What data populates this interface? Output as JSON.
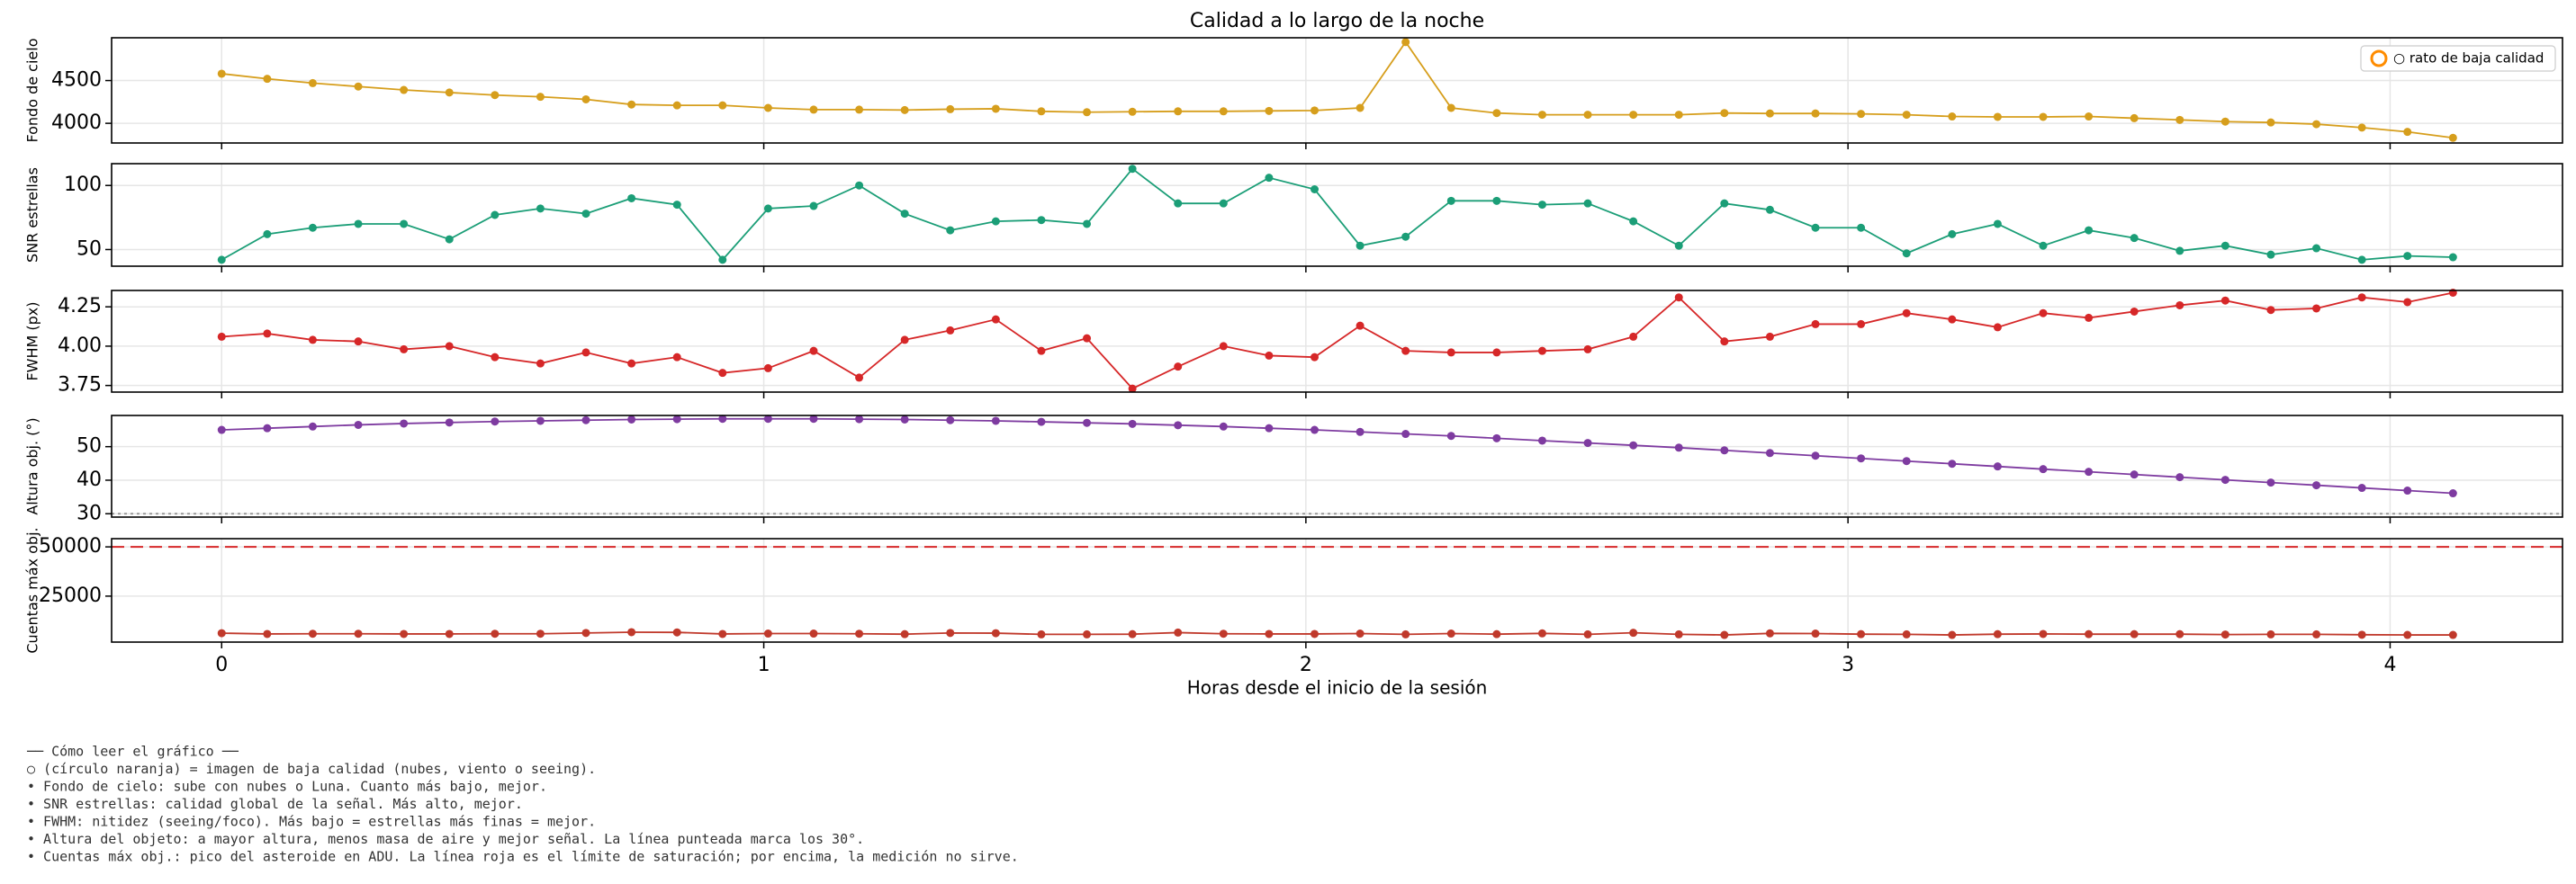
{
  "chart_data": [
    {
      "type": "line",
      "title": "Calidad a lo largo de la noche",
      "ylabel": "Fondo de cielo",
      "x": [
        0,
        0.084,
        0.168,
        0.252,
        0.336,
        0.42,
        0.504,
        0.588,
        0.672,
        0.756,
        0.84,
        0.924,
        1.008,
        1.092,
        1.176,
        1.26,
        1.344,
        1.428,
        1.512,
        1.596,
        1.68,
        1.764,
        1.848,
        1.932,
        2.016,
        2.1,
        2.184,
        2.268,
        2.352,
        2.436,
        2.52,
        2.604,
        2.688,
        2.772,
        2.856,
        2.94,
        3.024,
        3.108,
        3.192,
        3.276,
        3.36,
        3.444,
        3.528,
        3.612,
        3.696,
        3.78,
        3.864,
        3.948,
        4.032,
        4.116
      ],
      "series": [
        {
          "color": "#d69e1c",
          "values": [
            4580,
            4520,
            4470,
            4430,
            4390,
            4360,
            4330,
            4310,
            4280,
            4220,
            4210,
            4210,
            4180,
            4160,
            4160,
            4155,
            4165,
            4170,
            4140,
            4130,
            4135,
            4140,
            4140,
            4145,
            4150,
            4180,
            4950,
            4180,
            4120,
            4100,
            4100,
            4100,
            4100,
            4120,
            4115,
            4115,
            4110,
            4100,
            4080,
            4075,
            4075,
            4080,
            4060,
            4040,
            4020,
            4010,
            3990,
            3950,
            3900,
            3830
          ]
        }
      ],
      "xlim": [
        -0.203,
        4.318
      ],
      "xticks": [
        0,
        1,
        2,
        3,
        4
      ],
      "ylim": [
        3770,
        5000
      ],
      "yticks": [
        4000,
        4500
      ],
      "grid": true,
      "legend": [
        {
          "name": "○ rato de baja calidad",
          "color": "#ff8c00"
        }
      ],
      "legend_loc": "upper right"
    },
    {
      "type": "line",
      "ylabel": "SNR estrellas",
      "x": [
        0,
        0.084,
        0.168,
        0.252,
        0.336,
        0.42,
        0.504,
        0.588,
        0.672,
        0.756,
        0.84,
        0.924,
        1.008,
        1.092,
        1.176,
        1.26,
        1.344,
        1.428,
        1.512,
        1.596,
        1.68,
        1.764,
        1.848,
        1.932,
        2.016,
        2.1,
        2.184,
        2.268,
        2.352,
        2.436,
        2.52,
        2.604,
        2.688,
        2.772,
        2.856,
        2.94,
        3.024,
        3.108,
        3.192,
        3.276,
        3.36,
        3.444,
        3.528,
        3.612,
        3.696,
        3.78,
        3.864,
        3.948,
        4.032,
        4.116
      ],
      "series": [
        {
          "color": "#1b9e77",
          "values": [
            42,
            62,
            67,
            70,
            70,
            58,
            77,
            82,
            78,
            90,
            85,
            42,
            82,
            84,
            100,
            78,
            65,
            72,
            73,
            70,
            113,
            86,
            86,
            106,
            97,
            53,
            60,
            88,
            88,
            85,
            86,
            72,
            53,
            86,
            81,
            67,
            67,
            47,
            62,
            70,
            53,
            65,
            59,
            49,
            53,
            46,
            51,
            42,
            45,
            44
          ]
        }
      ],
      "xlim": [
        -0.203,
        4.318
      ],
      "xticks": [
        0,
        1,
        2,
        3,
        4
      ],
      "ylim": [
        37,
        117
      ],
      "yticks": [
        50,
        100
      ],
      "grid": true
    },
    {
      "type": "line",
      "ylabel": "FWHM (px)",
      "x": [
        0,
        0.084,
        0.168,
        0.252,
        0.336,
        0.42,
        0.504,
        0.588,
        0.672,
        0.756,
        0.84,
        0.924,
        1.008,
        1.092,
        1.176,
        1.26,
        1.344,
        1.428,
        1.512,
        1.596,
        1.68,
        1.764,
        1.848,
        1.932,
        2.016,
        2.1,
        2.184,
        2.268,
        2.352,
        2.436,
        2.52,
        2.604,
        2.688,
        2.772,
        2.856,
        2.94,
        3.024,
        3.108,
        3.192,
        3.276,
        3.36,
        3.444,
        3.528,
        3.612,
        3.696,
        3.78,
        3.864,
        3.948,
        4.032,
        4.116
      ],
      "series": [
        {
          "color": "#d62728",
          "values": [
            4.06,
            4.08,
            4.04,
            4.03,
            3.98,
            4.0,
            3.93,
            3.89,
            3.96,
            3.89,
            3.93,
            3.83,
            3.86,
            3.97,
            3.8,
            4.04,
            4.1,
            4.17,
            3.97,
            4.05,
            3.73,
            3.87,
            4.0,
            3.94,
            3.93,
            4.13,
            3.97,
            3.96,
            3.96,
            3.97,
            3.98,
            4.06,
            4.31,
            4.03,
            4.06,
            4.14,
            4.14,
            4.21,
            4.17,
            4.12,
            4.21,
            4.18,
            4.22,
            4.26,
            4.29,
            4.23,
            4.24,
            4.31,
            4.28,
            4.34
          ]
        }
      ],
      "xlim": [
        -0.203,
        4.318
      ],
      "xticks": [
        0,
        1,
        2,
        3,
        4
      ],
      "ylim": [
        3.708,
        4.354
      ],
      "yticks": [
        3.75,
        {
          "value": 4,
          "label": "4.00"
        },
        4.25
      ],
      "grid": true
    },
    {
      "type": "line",
      "ylabel": "Altura obj. (°)",
      "x": [
        0,
        0.084,
        0.168,
        0.252,
        0.336,
        0.42,
        0.504,
        0.588,
        0.672,
        0.756,
        0.84,
        0.924,
        1.008,
        1.092,
        1.176,
        1.26,
        1.344,
        1.428,
        1.512,
        1.596,
        1.68,
        1.764,
        1.848,
        1.932,
        2.016,
        2.1,
        2.184,
        2.268,
        2.352,
        2.436,
        2.52,
        2.604,
        2.688,
        2.772,
        2.856,
        2.94,
        3.024,
        3.108,
        3.192,
        3.276,
        3.36,
        3.444,
        3.528,
        3.612,
        3.696,
        3.78,
        3.864,
        3.948,
        4.032,
        4.116
      ],
      "series": [
        {
          "color": "#7e3ba0",
          "values": [
            55.0,
            55.5,
            56.0,
            56.5,
            56.9,
            57.2,
            57.5,
            57.7,
            57.9,
            58.1,
            58.2,
            58.3,
            58.3,
            58.3,
            58.2,
            58.1,
            57.9,
            57.7,
            57.4,
            57.1,
            56.8,
            56.4,
            56.0,
            55.5,
            55.0,
            54.4,
            53.8,
            53.2,
            52.5,
            51.8,
            51.1,
            50.4,
            49.7,
            48.9,
            48.1,
            47.3,
            46.5,
            45.7,
            44.9,
            44.1,
            43.3,
            42.5,
            41.7,
            40.9,
            40.1,
            39.3,
            38.5,
            37.7,
            36.9,
            36.1
          ]
        }
      ],
      "xlim": [
        -0.203,
        4.318
      ],
      "xticks": [
        0,
        1,
        2,
        3,
        4
      ],
      "ylim": [
        29,
        59.3
      ],
      "yticks": [
        30,
        40,
        50
      ],
      "grid": true,
      "hlines": [
        {
          "value": 30,
          "color": "#999999",
          "style": "dotted"
        }
      ]
    },
    {
      "type": "line",
      "ylabel": "Cuentas máx obj.",
      "xlabel": "Horas desde el inicio de la sesión",
      "show_xticklabels": true,
      "x": [
        0,
        0.084,
        0.168,
        0.252,
        0.336,
        0.42,
        0.504,
        0.588,
        0.672,
        0.756,
        0.84,
        0.924,
        1.008,
        1.092,
        1.176,
        1.26,
        1.344,
        1.428,
        1.512,
        1.596,
        1.68,
        1.764,
        1.848,
        1.932,
        2.016,
        2.1,
        2.184,
        2.268,
        2.352,
        2.436,
        2.52,
        2.604,
        2.688,
        2.772,
        2.856,
        2.94,
        3.024,
        3.108,
        3.192,
        3.276,
        3.36,
        3.444,
        3.528,
        3.612,
        3.696,
        3.78,
        3.864,
        3.948,
        4.032,
        4.116
      ],
      "series": [
        {
          "color": "#c0392b",
          "values": [
            6200,
            5800,
            5900,
            5900,
            5800,
            5800,
            5900,
            5900,
            6300,
            6700,
            6600,
            5800,
            6000,
            6000,
            5900,
            5700,
            6300,
            6200,
            5600,
            5600,
            5700,
            6500,
            5900,
            5800,
            5800,
            6000,
            5600,
            6000,
            5700,
            6100,
            5600,
            6400,
            5600,
            5300,
            6100,
            6000,
            5700,
            5600,
            5300,
            5700,
            5800,
            5700,
            5700,
            5700,
            5500,
            5600,
            5600,
            5400,
            5300,
            5300
          ]
        }
      ],
      "xlim": [
        -0.203,
        4.318
      ],
      "xticks": [
        0,
        1,
        2,
        3,
        4
      ],
      "ylim": [
        1667,
        54167
      ],
      "yticks": [
        25000,
        50000
      ],
      "grid": true,
      "hlines": [
        {
          "value": 50000,
          "color": "#d62728",
          "style": "dashed"
        }
      ]
    }
  ],
  "notes": [
    "── Cómo leer el gráfico ──",
    "○ (círculo naranja) = imagen de baja calidad (nubes, viento o seeing).",
    "• Fondo de cielo: sube con nubes o Luna. Cuanto más bajo, mejor.",
    "• SNR estrellas: calidad global de la señal. Más alto, mejor.",
    "• FWHM: nitidez (seeing/foco). Más bajo = estrellas más finas = mejor.",
    "• Altura del objeto: a mayor altura, menos masa de aire y mejor señal. La línea punteada marca los 30°.",
    "• Cuentas máx obj.: pico del asteroide en ADU. La línea roja es el límite de saturación; por encima, la medición no sirve."
  ]
}
